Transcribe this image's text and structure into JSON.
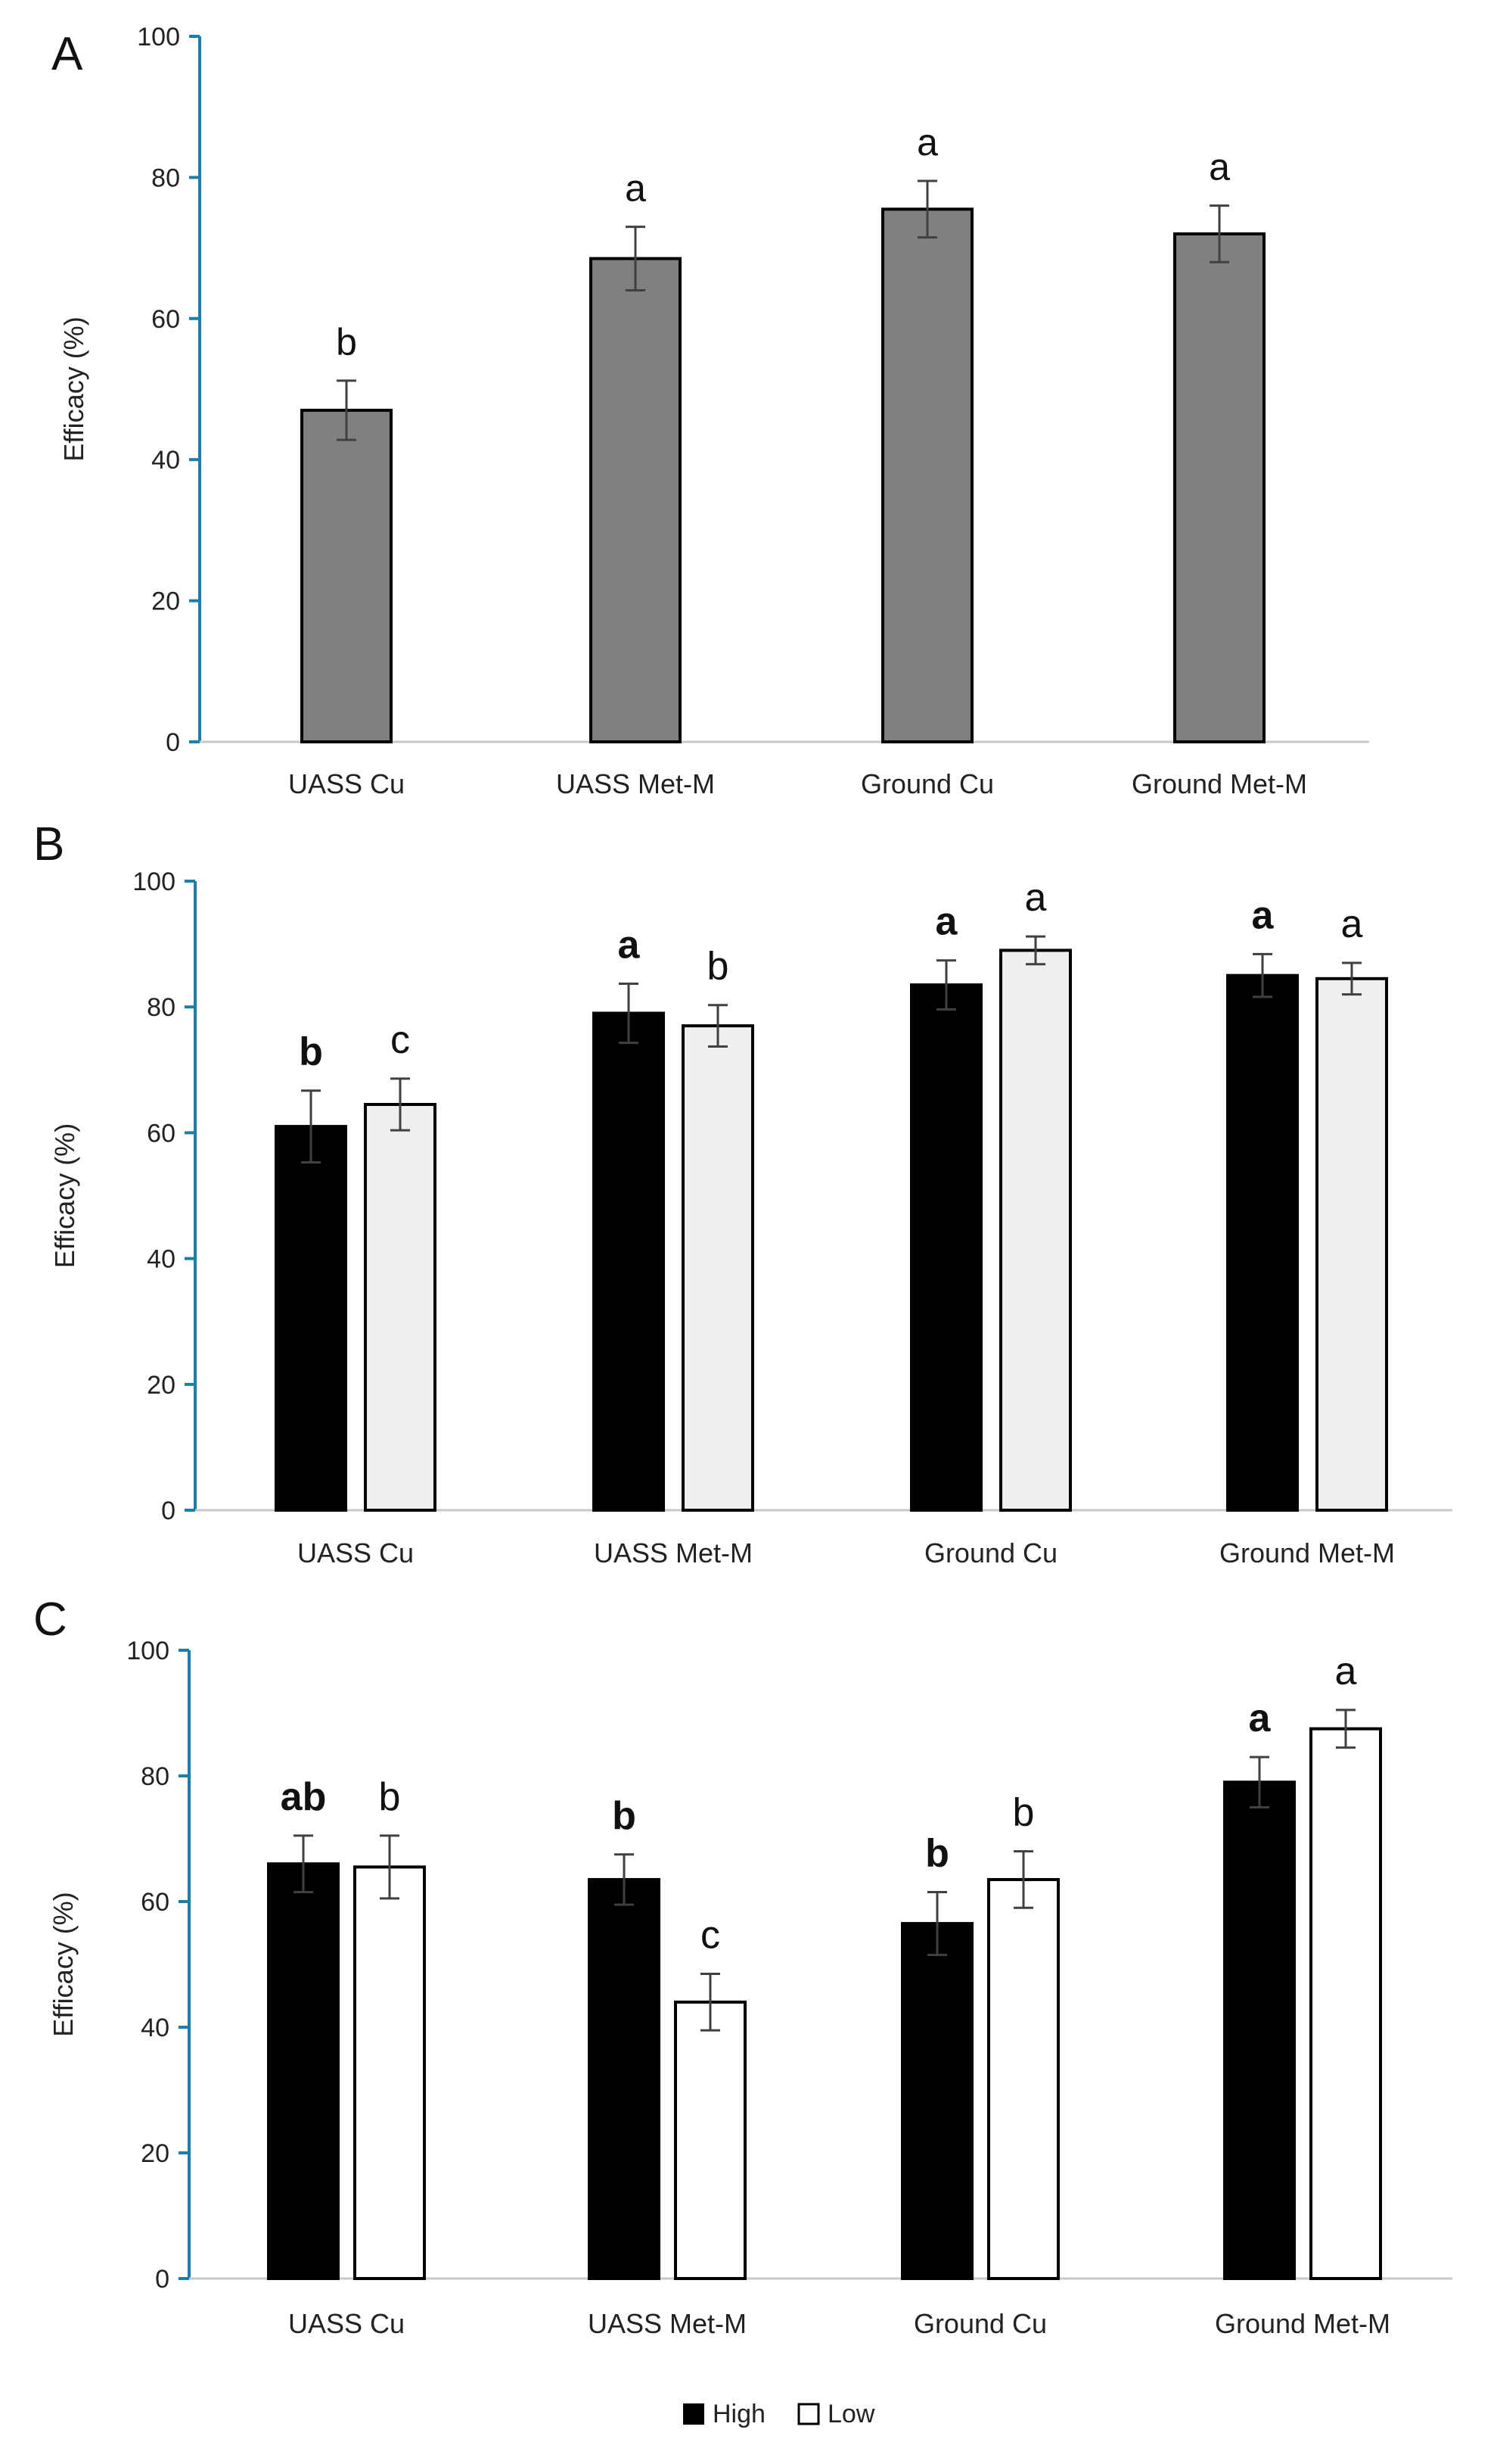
{
  "legend": {
    "placement": "bottom-center",
    "items": [
      {
        "label": "High",
        "color": "#000000"
      },
      {
        "label": "Low",
        "color": "#ffffff"
      }
    ]
  },
  "colors": {
    "axis_line": "#1a7fa8",
    "single_bar": "#808080",
    "high": "#000000",
    "low_B": "#efefef",
    "low_C": "#ffffff",
    "error_bar": "#404040"
  },
  "chart_data": [
    {
      "panel_label": "A",
      "type": "bar",
      "categories": [
        "UASS Cu",
        "UASS Met-M",
        "Ground Cu",
        "Ground Met-M"
      ],
      "ylabel": "Efficacy (%)",
      "ylim": [
        0,
        100
      ],
      "yticks": [
        "0",
        "20",
        "40",
        "60",
        "80",
        "100"
      ],
      "grid": false,
      "series": [
        {
          "key": "single",
          "values": [
            47,
            68.5,
            75.5,
            72
          ],
          "errors": [
            4.2,
            4.5,
            4,
            4
          ],
          "letters": [
            "b",
            "a",
            "a",
            "a"
          ],
          "bold_letters": false
        }
      ]
    },
    {
      "panel_label": "B",
      "type": "bar",
      "categories": [
        "UASS Cu",
        "UASS Met-M",
        "Ground Cu",
        "Ground Met-M"
      ],
      "ylabel": "Efficacy (%)",
      "ylim": [
        0,
        100
      ],
      "yticks": [
        "0",
        "20",
        "40",
        "60",
        "80",
        "100"
      ],
      "grid": false,
      "series": [
        {
          "name": "High",
          "key": "high",
          "values": [
            61,
            79,
            83.5,
            85
          ],
          "errors": [
            5.7,
            4.7,
            3.9,
            3.4
          ],
          "letters": [
            "b",
            "a",
            "a",
            "a"
          ],
          "bold_letters": true
        },
        {
          "name": "Low",
          "key": "low",
          "values": [
            64.5,
            77,
            89,
            84.5
          ],
          "errors": [
            4.1,
            3.3,
            2.2,
            2.5
          ],
          "letters": [
            "c",
            "b",
            "a",
            "a"
          ],
          "bold_letters": false
        }
      ]
    },
    {
      "panel_label": "C",
      "type": "bar",
      "categories": [
        "UASS Cu",
        "UASS Met-M",
        "Ground Cu",
        "Ground Met-M"
      ],
      "ylabel": "Efficacy (%)",
      "ylim": [
        0,
        100
      ],
      "yticks": [
        "0",
        "20",
        "40",
        "60",
        "80",
        "100"
      ],
      "grid": false,
      "series": [
        {
          "name": "High",
          "key": "high",
          "values": [
            66,
            63.5,
            56.5,
            79
          ],
          "errors": [
            4.5,
            4,
            5,
            4
          ],
          "letters": [
            "ab",
            "b",
            "b",
            "a"
          ],
          "bold_letters": true
        },
        {
          "name": "Low",
          "key": "low",
          "values": [
            65.5,
            44,
            63.5,
            87.5
          ],
          "errors": [
            5,
            4.5,
            4.5,
            3
          ],
          "letters": [
            "b",
            "c",
            "b",
            "a"
          ],
          "bold_letters": false
        }
      ]
    }
  ]
}
